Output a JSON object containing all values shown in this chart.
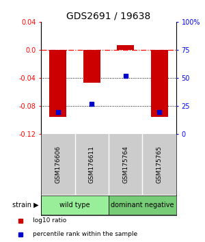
{
  "title": "GDS2691 / 19638",
  "samples": [
    "GSM176606",
    "GSM176611",
    "GSM175764",
    "GSM175765"
  ],
  "log10_ratio": [
    -0.095,
    -0.047,
    0.007,
    -0.095
  ],
  "percentile_rank": [
    20,
    27,
    52,
    20
  ],
  "bar_color": "#cc0000",
  "dot_color": "#0000cc",
  "ylim_left": [
    -0.12,
    0.04
  ],
  "ylim_right": [
    0,
    100
  ],
  "yticks_left": [
    -0.12,
    -0.08,
    -0.04,
    0.0,
    0.04
  ],
  "yticks_right": [
    0,
    25,
    50,
    75,
    100
  ],
  "groups": [
    {
      "label": "wild type",
      "samples": [
        0,
        1
      ],
      "color": "#99ee99"
    },
    {
      "label": "dominant negative",
      "samples": [
        2,
        3
      ],
      "color": "#77cc77"
    }
  ],
  "group_label": "strain",
  "legend_red": "log10 ratio",
  "legend_blue": "percentile rank within the sample",
  "hline_y": 0.0,
  "dotted_lines": [
    -0.04,
    -0.08
  ],
  "sample_bg_color": "#cccccc",
  "background_color": "#ffffff"
}
